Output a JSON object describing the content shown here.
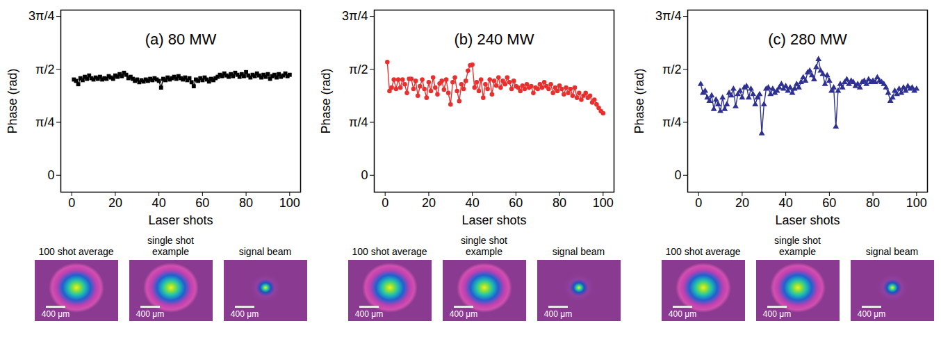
{
  "chart_data": [
    {
      "type": "line",
      "title": "(a) 80 MW",
      "x_label": "Laser shots",
      "y_label": "Phase (rad)",
      "xlim": [
        -5,
        105
      ],
      "xticks": [
        0,
        20,
        40,
        60,
        80,
        100
      ],
      "ylim": [
        -0.25,
        2.45
      ],
      "yticks": [
        0,
        {
          "value": 0.7854,
          "label": "π/4"
        },
        {
          "value": 1.5708,
          "label": "π/2"
        },
        {
          "value": 2.3562,
          "label": "3π/4"
        }
      ],
      "grid": false,
      "color": "#000000",
      "marker": "square",
      "line_style": "solid",
      "x": [
        1,
        2,
        3,
        4,
        5,
        6,
        7,
        8,
        9,
        10,
        11,
        12,
        13,
        14,
        15,
        16,
        17,
        18,
        19,
        20,
        21,
        22,
        23,
        24,
        25,
        26,
        27,
        28,
        29,
        30,
        31,
        32,
        33,
        34,
        35,
        36,
        37,
        38,
        39,
        40,
        41,
        42,
        43,
        44,
        45,
        46,
        47,
        48,
        49,
        50,
        51,
        52,
        53,
        54,
        55,
        56,
        57,
        58,
        59,
        60,
        61,
        62,
        63,
        64,
        65,
        66,
        67,
        68,
        69,
        70,
        71,
        72,
        73,
        74,
        75,
        76,
        77,
        78,
        79,
        80,
        81,
        82,
        83,
        84,
        85,
        86,
        87,
        88,
        89,
        90,
        91,
        92,
        93,
        94,
        95,
        96,
        97,
        98,
        99,
        100
      ],
      "values": [
        1.42,
        1.4,
        1.35,
        1.44,
        1.41,
        1.46,
        1.43,
        1.48,
        1.44,
        1.42,
        1.45,
        1.43,
        1.46,
        1.42,
        1.44,
        1.43,
        1.47,
        1.45,
        1.43,
        1.48,
        1.46,
        1.5,
        1.47,
        1.52,
        1.49,
        1.44,
        1.46,
        1.43,
        1.4,
        1.42,
        1.38,
        1.41,
        1.39,
        1.42,
        1.4,
        1.43,
        1.41,
        1.44,
        1.42,
        1.4,
        1.3,
        1.43,
        1.41,
        1.45,
        1.42,
        1.44,
        1.46,
        1.43,
        1.47,
        1.44,
        1.42,
        1.45,
        1.41,
        1.44,
        1.38,
        1.32,
        1.42,
        1.4,
        1.44,
        1.41,
        1.45,
        1.42,
        1.39,
        1.43,
        1.41,
        1.44,
        1.46,
        1.49,
        1.47,
        1.51,
        1.48,
        1.46,
        1.5,
        1.47,
        1.52,
        1.49,
        1.46,
        1.5,
        1.47,
        1.53,
        1.48,
        1.45,
        1.49,
        1.47,
        1.51,
        1.48,
        1.45,
        1.49,
        1.46,
        1.5,
        1.43,
        1.47,
        1.49,
        1.45,
        1.5,
        1.46,
        1.48,
        1.51,
        1.47,
        1.49
      ],
      "image_captions": [
        "100 shot average",
        "single shot example",
        "signal beam"
      ],
      "scale_bar_label": "400 μm"
    },
    {
      "type": "line",
      "title": "(b) 240 MW",
      "x_label": "Laser shots",
      "y_label": "Phase (rad)",
      "xlim": [
        -5,
        105
      ],
      "xticks": [
        0,
        20,
        40,
        60,
        80,
        100
      ],
      "ylim": [
        -0.25,
        2.45
      ],
      "yticks": [
        0,
        {
          "value": 0.7854,
          "label": "π/4"
        },
        {
          "value": 1.5708,
          "label": "π/2"
        },
        {
          "value": 2.3562,
          "label": "3π/4"
        }
      ],
      "grid": false,
      "color": "#e8312f",
      "marker": "circle",
      "line_style": "solid",
      "x": [
        1,
        2,
        3,
        4,
        5,
        6,
        7,
        8,
        9,
        10,
        11,
        12,
        13,
        14,
        15,
        16,
        17,
        18,
        19,
        20,
        21,
        22,
        23,
        24,
        25,
        26,
        27,
        28,
        29,
        30,
        31,
        32,
        33,
        34,
        35,
        36,
        37,
        38,
        39,
        40,
        41,
        42,
        43,
        44,
        45,
        46,
        47,
        48,
        49,
        50,
        51,
        52,
        53,
        54,
        55,
        56,
        57,
        58,
        59,
        60,
        61,
        62,
        63,
        64,
        65,
        66,
        67,
        68,
        69,
        70,
        71,
        72,
        73,
        74,
        75,
        76,
        77,
        78,
        79,
        80,
        81,
        82,
        83,
        84,
        85,
        86,
        87,
        88,
        89,
        90,
        91,
        92,
        93,
        94,
        95,
        96,
        97,
        98,
        99,
        100
      ],
      "values": [
        1.68,
        1.25,
        1.3,
        1.42,
        1.28,
        1.42,
        1.3,
        1.42,
        1.35,
        1.22,
        1.43,
        1.43,
        1.28,
        1.4,
        1.18,
        1.32,
        1.42,
        1.28,
        1.15,
        1.38,
        1.25,
        1.45,
        1.3,
        1.2,
        1.36,
        1.4,
        1.27,
        1.42,
        1.22,
        1.05,
        1.38,
        1.45,
        1.25,
        1.1,
        1.35,
        1.28,
        1.4,
        1.55,
        1.63,
        1.64,
        1.3,
        1.38,
        1.25,
        1.42,
        1.15,
        1.35,
        1.28,
        1.42,
        1.2,
        1.4,
        1.33,
        1.45,
        1.3,
        1.4,
        1.35,
        1.45,
        1.38,
        1.28,
        1.4,
        1.32,
        1.3,
        1.25,
        1.33,
        1.28,
        1.35,
        1.3,
        1.32,
        1.22,
        1.3,
        1.28,
        1.35,
        1.3,
        1.38,
        1.32,
        1.28,
        1.35,
        1.22,
        1.3,
        1.25,
        1.33,
        1.28,
        1.2,
        1.3,
        1.22,
        1.28,
        1.18,
        1.3,
        1.15,
        1.22,
        1.12,
        1.18,
        1.22,
        1.15,
        1.18,
        1.08,
        1.12,
        1.05,
        1.0,
        0.95,
        0.92
      ],
      "image_captions": [
        "100 shot average",
        "single shot example",
        "signal beam"
      ],
      "scale_bar_label": "400 μm"
    },
    {
      "type": "line",
      "title": "(c) 280 MW",
      "x_label": "Laser shots",
      "y_label": "Phase (rad)",
      "xlim": [
        -5,
        105
      ],
      "xticks": [
        0,
        20,
        40,
        60,
        80,
        100
      ],
      "ylim": [
        -0.25,
        2.45
      ],
      "yticks": [
        0,
        {
          "value": 0.7854,
          "label": "π/4"
        },
        {
          "value": 1.5708,
          "label": "π/2"
        },
        {
          "value": 2.3562,
          "label": "3π/4"
        }
      ],
      "grid": false,
      "color": "#2e3192",
      "marker": "triangle",
      "line_style": "solid",
      "x": [
        1,
        2,
        3,
        4,
        5,
        6,
        7,
        8,
        9,
        10,
        11,
        12,
        13,
        14,
        15,
        16,
        17,
        18,
        19,
        20,
        21,
        22,
        23,
        24,
        25,
        26,
        27,
        28,
        29,
        30,
        31,
        32,
        33,
        34,
        35,
        36,
        37,
        38,
        39,
        40,
        41,
        42,
        43,
        44,
        45,
        46,
        47,
        48,
        49,
        50,
        51,
        52,
        53,
        54,
        55,
        56,
        57,
        58,
        59,
        60,
        61,
        62,
        63,
        64,
        65,
        66,
        67,
        68,
        69,
        70,
        71,
        72,
        73,
        74,
        75,
        76,
        77,
        78,
        79,
        80,
        81,
        82,
        83,
        84,
        85,
        86,
        87,
        88,
        89,
        90,
        91,
        92,
        93,
        94,
        95,
        96,
        97,
        98,
        99,
        100
      ],
      "values": [
        1.35,
        1.22,
        1.25,
        1.15,
        1.1,
        1.18,
        0.98,
        1.12,
        1.05,
        0.95,
        1.15,
        0.98,
        1.05,
        1.22,
        1.18,
        1.28,
        1.02,
        1.2,
        1.25,
        1.15,
        1.3,
        1.32,
        1.15,
        1.28,
        1.2,
        1.05,
        1.15,
        1.2,
        0.62,
        1.05,
        1.28,
        1.3,
        1.2,
        1.28,
        1.22,
        1.25,
        1.3,
        1.35,
        1.28,
        1.32,
        1.25,
        1.3,
        1.22,
        1.28,
        1.35,
        1.3,
        1.38,
        1.45,
        1.4,
        1.52,
        1.55,
        1.48,
        1.42,
        1.6,
        1.72,
        1.55,
        1.5,
        1.35,
        1.48,
        1.4,
        1.25,
        1.3,
        0.72,
        1.25,
        1.35,
        1.3,
        1.38,
        1.42,
        1.35,
        1.4,
        1.38,
        1.32,
        1.35,
        1.3,
        1.38,
        1.4,
        1.35,
        1.42,
        1.38,
        1.4,
        1.38,
        1.45,
        1.4,
        1.38,
        1.35,
        1.3,
        1.22,
        1.1,
        1.15,
        1.25,
        1.2,
        1.28,
        1.22,
        1.3,
        1.25,
        1.32,
        1.28,
        1.3,
        1.25,
        1.28
      ],
      "image_captions": [
        "100 shot average",
        "single shot example",
        "signal beam"
      ],
      "scale_bar_label": "400 μm"
    }
  ]
}
